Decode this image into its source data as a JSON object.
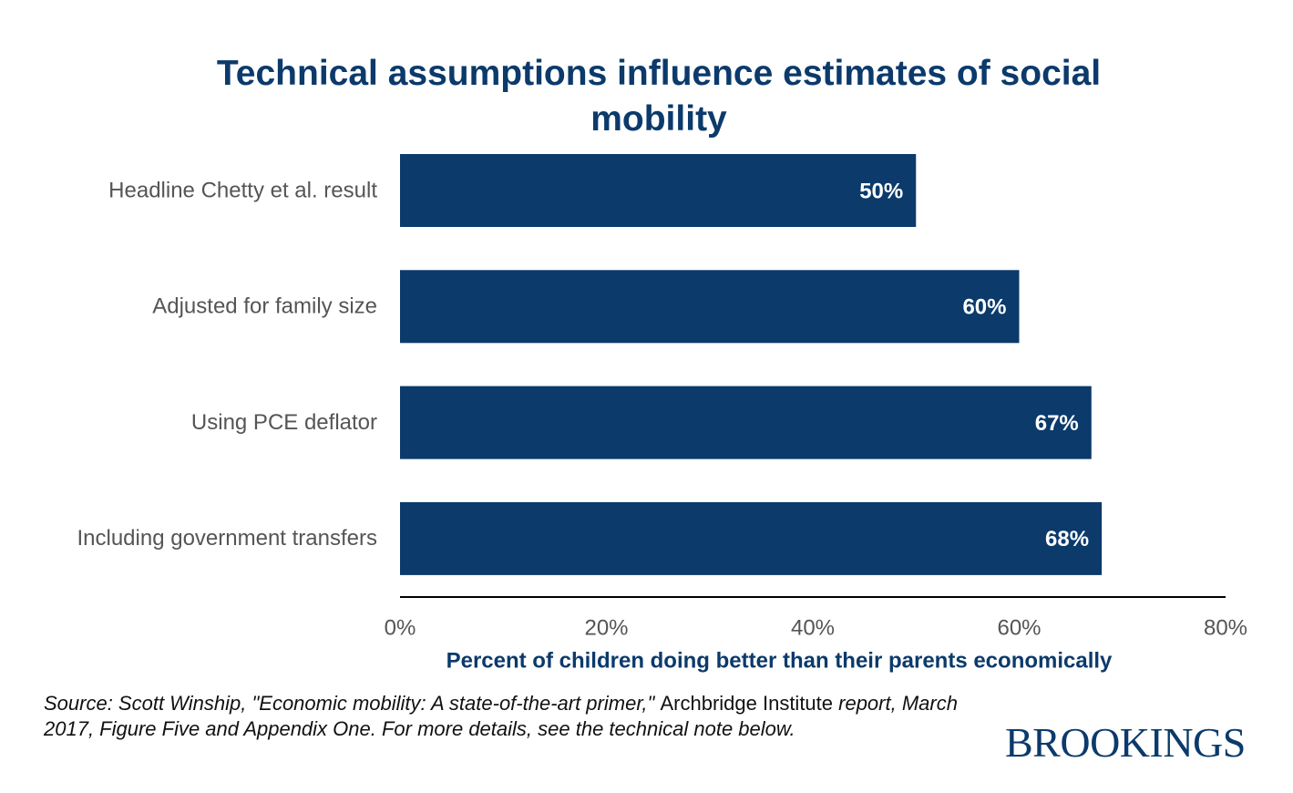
{
  "chart_data": {
    "type": "barh",
    "title": "Technical assumptions influence estimates of social mobility",
    "categories": [
      "Headline Chetty et al. result",
      "Adjusted for family size",
      "Using PCE deflator",
      "Including government transfers"
    ],
    "values": [
      50,
      60,
      67,
      68
    ],
    "value_labels": [
      "50%",
      "60%",
      "67%",
      "68%"
    ],
    "color": "#0b3a6b",
    "xlim": [
      0,
      80
    ],
    "xticks": [
      {
        "value": 0,
        "label": "0%"
      },
      {
        "value": 20,
        "label": "20%"
      },
      {
        "value": 40,
        "label": "40%"
      },
      {
        "value": 60,
        "label": "60%"
      },
      {
        "value": 80,
        "label": "80%"
      }
    ],
    "xlabel": "Percent of children doing better than their parents economically",
    "source": [
      "Source: Scott Winship, \"Economic mobility: A state-of-the-art primer,\" ",
      "Archbridge Institute",
      " report, March 2017, Figure Five and Appendix One. For more details, see the technical note below."
    ],
    "logo": "BROOKINGS"
  }
}
